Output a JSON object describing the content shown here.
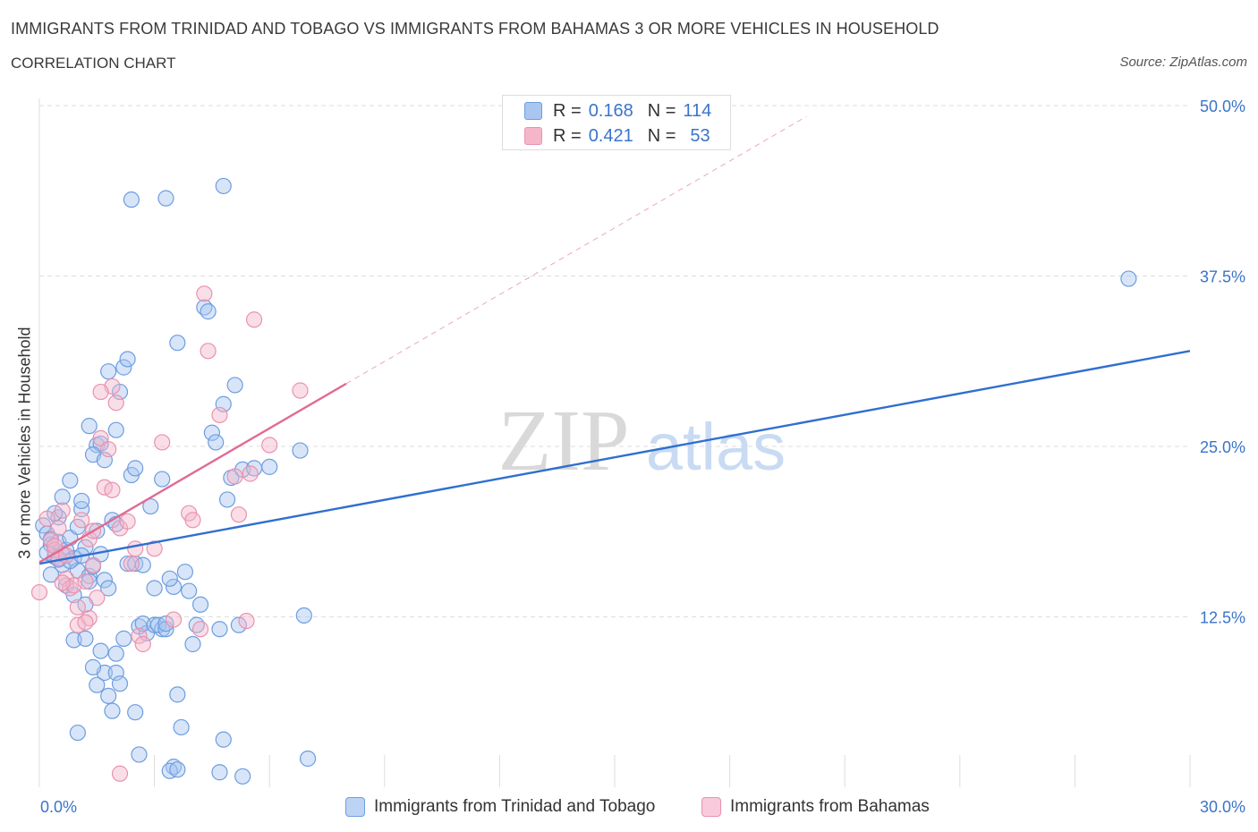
{
  "header": {
    "title": "IMMIGRANTS FROM TRINIDAD AND TOBAGO VS IMMIGRANTS FROM BAHAMAS 3 OR MORE VEHICLES IN HOUSEHOLD",
    "subtitle": "CORRELATION CHART",
    "source": "Source: ZipAtlas.com"
  },
  "legend": {
    "series1": {
      "r_label": "R =",
      "r_value": "0.168",
      "n_label": "N =",
      "n_value": "114"
    },
    "series2": {
      "r_label": "R =",
      "r_value": "0.421",
      "n_label": "N =",
      "n_value": "53"
    }
  },
  "watermark": {
    "zip": "ZIP",
    "atlas": "atlas"
  },
  "colors": {
    "blue_fill": "#a9c6f0",
    "blue_stroke": "#6d9de0",
    "blue_line": "#2f6fd0",
    "pink_fill": "#f5b6c9",
    "pink_stroke": "#e992ae",
    "pink_line": "#e06a93",
    "tick_text": "#3a74c9",
    "grid": "#dddddd"
  },
  "chart_data": {
    "type": "scatter",
    "title": "IMMIGRANTS FROM TRINIDAD AND TOBAGO VS IMMIGRANTS FROM BAHAMAS 3 OR MORE VEHICLES IN HOUSEHOLD",
    "xlabel": "",
    "ylabel": "3 or more Vehicles in Household",
    "xlim": [
      0,
      30
    ],
    "ylim": [
      0,
      50
    ],
    "x_tick_labels": [
      "0.0%",
      "30.0%"
    ],
    "y_ticks": [
      12.5,
      25.0,
      37.5,
      50.0
    ],
    "y_tick_labels": [
      "12.5%",
      "25.0%",
      "37.5%",
      "50.0%"
    ],
    "grid": true,
    "legend_position": "bottom",
    "series": [
      {
        "name": "Immigrants from Trinidad and Tobago",
        "color": "blue",
        "R": 0.168,
        "N": 114,
        "trend": {
          "x": [
            0,
            30
          ],
          "y": [
            16.4,
            32.0
          ],
          "style": "solid"
        },
        "points": [
          [
            0.1,
            19.2
          ],
          [
            0.2,
            18.6
          ],
          [
            0.3,
            17.8
          ],
          [
            0.4,
            16.9
          ],
          [
            0.2,
            17.2
          ],
          [
            0.5,
            18.0
          ],
          [
            0.6,
            16.3
          ],
          [
            0.3,
            15.6
          ],
          [
            0.7,
            17.4
          ],
          [
            0.8,
            18.3
          ],
          [
            0.5,
            19.8
          ],
          [
            0.9,
            16.8
          ],
          [
            1.0,
            15.9
          ],
          [
            0.4,
            20.1
          ],
          [
            0.6,
            21.3
          ],
          [
            0.8,
            22.5
          ],
          [
            1.1,
            20.4
          ],
          [
            1.0,
            19.1
          ],
          [
            1.2,
            17.6
          ],
          [
            0.7,
            14.8
          ],
          [
            0.9,
            14.1
          ],
          [
            1.3,
            15.5
          ],
          [
            1.4,
            16.2
          ],
          [
            1.5,
            18.8
          ],
          [
            1.6,
            17.1
          ],
          [
            1.2,
            13.4
          ],
          [
            1.7,
            15.2
          ],
          [
            1.8,
            14.6
          ],
          [
            1.9,
            19.6
          ],
          [
            2.0,
            19.3
          ],
          [
            1.1,
            21.0
          ],
          [
            1.3,
            26.5
          ],
          [
            1.5,
            25.1
          ],
          [
            1.6,
            25.2
          ],
          [
            1.4,
            24.4
          ],
          [
            1.7,
            24.0
          ],
          [
            1.8,
            30.5
          ],
          [
            2.0,
            26.2
          ],
          [
            2.1,
            29.0
          ],
          [
            2.3,
            16.4
          ],
          [
            2.5,
            16.4
          ],
          [
            2.2,
            30.8
          ],
          [
            2.3,
            31.4
          ],
          [
            2.4,
            22.9
          ],
          [
            2.5,
            23.4
          ],
          [
            2.6,
            11.8
          ],
          [
            2.8,
            11.3
          ],
          [
            2.7,
            12.0
          ],
          [
            3.0,
            11.9
          ],
          [
            3.2,
            11.6
          ],
          [
            3.1,
            11.9
          ],
          [
            3.3,
            11.6
          ],
          [
            2.7,
            16.3
          ],
          [
            2.9,
            20.6
          ],
          [
            3.2,
            22.6
          ],
          [
            3.5,
            14.7
          ],
          [
            3.4,
            15.3
          ],
          [
            3.6,
            32.6
          ],
          [
            3.8,
            15.8
          ],
          [
            3.9,
            14.4
          ],
          [
            4.0,
            10.5
          ],
          [
            4.1,
            11.9
          ],
          [
            4.2,
            13.4
          ],
          [
            4.3,
            35.2
          ],
          [
            4.4,
            34.9
          ],
          [
            4.5,
            26.0
          ],
          [
            4.6,
            25.3
          ],
          [
            4.7,
            11.6
          ],
          [
            4.8,
            28.1
          ],
          [
            4.9,
            21.1
          ],
          [
            5.0,
            22.7
          ],
          [
            5.1,
            29.5
          ],
          [
            5.2,
            11.9
          ],
          [
            5.3,
            23.3
          ],
          [
            5.6,
            23.4
          ],
          [
            6.0,
            23.5
          ],
          [
            6.8,
            24.7
          ],
          [
            6.9,
            12.6
          ],
          [
            7.0,
            2.1
          ],
          [
            4.8,
            44.1
          ],
          [
            2.4,
            43.1
          ],
          [
            3.3,
            43.2
          ],
          [
            0.9,
            10.8
          ],
          [
            1.2,
            10.9
          ],
          [
            1.5,
            7.5
          ],
          [
            1.7,
            8.4
          ],
          [
            1.8,
            6.7
          ],
          [
            1.9,
            5.6
          ],
          [
            2.0,
            8.4
          ],
          [
            2.1,
            7.6
          ],
          [
            1.4,
            8.8
          ],
          [
            1.0,
            4.0
          ],
          [
            2.6,
            2.4
          ],
          [
            2.5,
            5.5
          ],
          [
            3.6,
            6.8
          ],
          [
            3.7,
            4.4
          ],
          [
            3.5,
            1.5
          ],
          [
            3.4,
            1.2
          ],
          [
            3.6,
            1.3
          ],
          [
            4.8,
            3.5
          ],
          [
            4.7,
            1.1
          ],
          [
            5.3,
            0.8
          ],
          [
            1.6,
            10.0
          ],
          [
            2.2,
            10.9
          ],
          [
            3.3,
            12.0
          ],
          [
            3.0,
            14.6
          ],
          [
            28.4,
            37.3
          ],
          [
            2.0,
            9.8
          ],
          [
            0.6,
            17.1
          ],
          [
            0.3,
            18.2
          ],
          [
            0.8,
            16.6
          ],
          [
            1.1,
            17.0
          ],
          [
            0.5,
            16.7
          ],
          [
            1.3,
            15.1
          ]
        ]
      },
      {
        "name": "Immigrants from Bahamas",
        "color": "pink",
        "R": 0.421,
        "N": 53,
        "trend": {
          "x": [
            0,
            8.0
          ],
          "y": [
            16.5,
            29.6
          ],
          "style": "solid",
          "extension": {
            "x": [
              8.0,
              20.0
            ],
            "y": [
              29.6,
              49.2
            ],
            "style": "dashed"
          }
        },
        "points": [
          [
            0.0,
            14.3
          ],
          [
            0.2,
            19.7
          ],
          [
            0.3,
            18.1
          ],
          [
            0.4,
            17.4
          ],
          [
            0.5,
            16.8
          ],
          [
            0.6,
            20.3
          ],
          [
            0.7,
            15.3
          ],
          [
            0.8,
            14.6
          ],
          [
            0.9,
            14.8
          ],
          [
            1.0,
            13.2
          ],
          [
            1.1,
            19.6
          ],
          [
            1.2,
            15.1
          ],
          [
            1.3,
            18.2
          ],
          [
            1.4,
            16.3
          ],
          [
            1.5,
            13.9
          ],
          [
            1.6,
            25.6
          ],
          [
            1.8,
            24.8
          ],
          [
            1.7,
            22.0
          ],
          [
            1.9,
            29.4
          ],
          [
            2.0,
            28.2
          ],
          [
            1.6,
            29.0
          ],
          [
            1.4,
            18.8
          ],
          [
            1.9,
            21.8
          ],
          [
            2.1,
            19.0
          ],
          [
            2.3,
            19.5
          ],
          [
            2.5,
            17.5
          ],
          [
            2.6,
            11.1
          ],
          [
            2.7,
            10.5
          ],
          [
            2.4,
            16.4
          ],
          [
            1.3,
            12.4
          ],
          [
            1.0,
            11.9
          ],
          [
            1.2,
            12.1
          ],
          [
            3.2,
            25.3
          ],
          [
            3.5,
            12.3
          ],
          [
            3.9,
            20.1
          ],
          [
            4.0,
            19.6
          ],
          [
            4.2,
            11.6
          ],
          [
            4.4,
            32.0
          ],
          [
            4.3,
            36.2
          ],
          [
            4.7,
            27.3
          ],
          [
            5.2,
            20.0
          ],
          [
            5.1,
            22.8
          ],
          [
            5.5,
            23.0
          ],
          [
            6.0,
            25.1
          ],
          [
            5.4,
            12.2
          ],
          [
            6.8,
            29.1
          ],
          [
            5.6,
            34.3
          ],
          [
            2.1,
            1.0
          ],
          [
            3.0,
            17.5
          ],
          [
            0.7,
            17.0
          ],
          [
            0.4,
            17.7
          ],
          [
            0.6,
            15.0
          ],
          [
            0.5,
            19.0
          ]
        ]
      }
    ]
  },
  "bottom_legend": {
    "series1_label": "Immigrants from Trinidad and Tobago",
    "series2_label": "Immigrants from Bahamas"
  }
}
